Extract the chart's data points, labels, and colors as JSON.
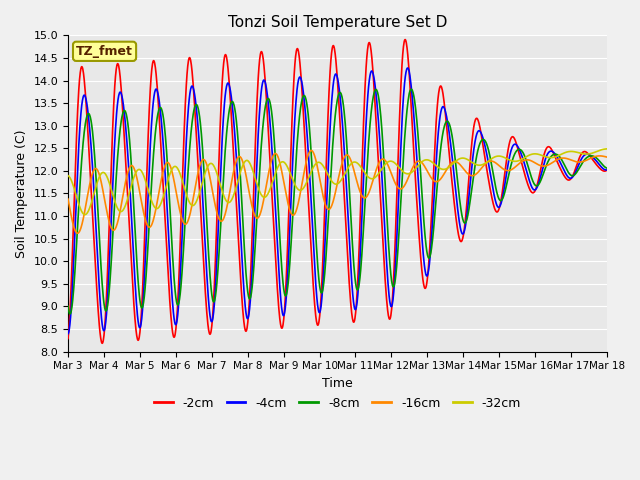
{
  "title": "Tonzi Soil Temperature Set D",
  "xlabel": "Time",
  "ylabel": "Soil Temperature (C)",
  "ylim": [
    8.0,
    15.0
  ],
  "yticks": [
    8.0,
    8.5,
    9.0,
    9.5,
    10.0,
    10.5,
    11.0,
    11.5,
    12.0,
    12.5,
    13.0,
    13.5,
    14.0,
    14.5,
    15.0
  ],
  "xtick_labels": [
    "Mar 3",
    "Mar 4",
    "Mar 5",
    "Mar 6",
    "Mar 7",
    "Mar 8",
    "Mar 9",
    "Mar 10",
    "Mar 11",
    "Mar 12",
    "Mar 13",
    "Mar 14",
    "Mar 15",
    "Mar 16",
    "Mar 17",
    "Mar 18"
  ],
  "series_colors": [
    "#ff0000",
    "#0000ff",
    "#009900",
    "#ff8800",
    "#cccc00"
  ],
  "series_labels": [
    "-2cm",
    "-4cm",
    "-8cm",
    "-16cm",
    "-32cm"
  ],
  "legend_box_facecolor": "#ffff99",
  "legend_box_edgecolor": "#999900",
  "watermark_text": "TZ_fmet",
  "fig_facecolor": "#f0f0f0",
  "plot_facecolor": "#e8e8e8",
  "grid_color": "#ffffff",
  "n_points": 1500
}
